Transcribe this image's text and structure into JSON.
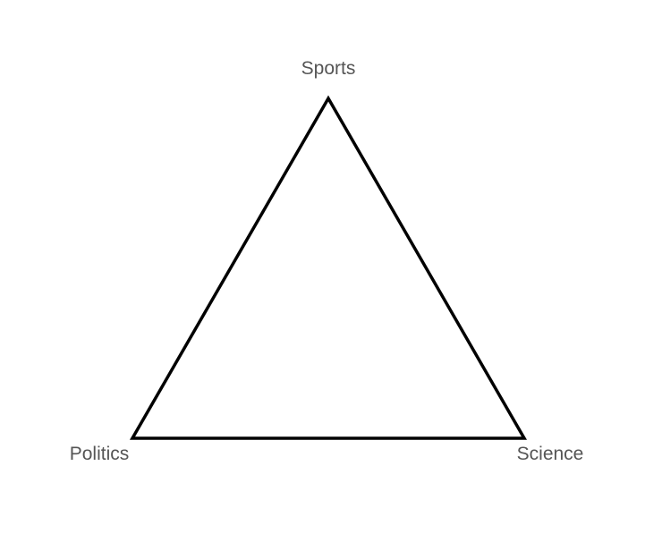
{
  "diagram": {
    "type": "triangle",
    "vertices": {
      "top": {
        "label": "Sports"
      },
      "bottom_left": {
        "label": "Politics"
      },
      "bottom_right": {
        "label": "Science"
      }
    },
    "colors": {
      "outline": "#000000",
      "label_text": "#555555",
      "background": "#ffffff"
    }
  }
}
